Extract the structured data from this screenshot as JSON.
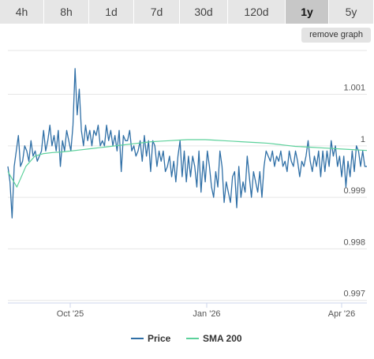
{
  "range_tabs": {
    "items": [
      {
        "label": "4h",
        "active": false
      },
      {
        "label": "8h",
        "active": false
      },
      {
        "label": "1d",
        "active": false
      },
      {
        "label": "7d",
        "active": false
      },
      {
        "label": "30d",
        "active": false
      },
      {
        "label": "120d",
        "active": false
      },
      {
        "label": "1y",
        "active": true
      },
      {
        "label": "5y",
        "active": false
      }
    ]
  },
  "remove_graph_label": "remove graph",
  "chart_data": {
    "type": "line",
    "x_ticks": [
      "Oct '25",
      "Jan '26",
      "Apr '26"
    ],
    "y_ticks": [
      0.997,
      0.998,
      0.999,
      1,
      1.001
    ],
    "y_tick_labels": [
      "0.997",
      "0.998",
      "0.999",
      "1",
      "1.001"
    ],
    "ylim": [
      0.99695,
      1.00185
    ],
    "grid": true,
    "legend_position": "bottom",
    "series": [
      {
        "name": "Price",
        "color": "#2f6fa6",
        "values": [
          0.9996,
          0.9993,
          0.9986,
          0.9996,
          0.9999,
          1.0002,
          0.9996,
          0.9997,
          1.0,
          0.9999,
          0.9997,
          1.0001,
          0.9998,
          0.9999,
          0.9997,
          0.9998,
          0.9999,
          1.0003,
          0.9999,
          1.0001,
          1.0004,
          1.0,
          1.0002,
          0.9999,
          1.0003,
          0.9996,
          1.0001,
          0.9999,
          1.0003,
          1.0001,
          0.9999,
          1.0004,
          1.0015,
          1.0006,
          1.0011,
          1.0003,
          1.0,
          1.0004,
          1.0001,
          1.0003,
          1.0,
          1.0003,
          1.0002,
          1.0004,
          1.0,
          1.0001,
          1.0,
          1.0004,
          1.0001,
          1.0003,
          1.0,
          1.0002,
          0.9999,
          1.0003,
          0.9995,
          1.0002,
          1.0001,
          1.0001,
          1.0003,
          0.9999,
          1.0,
          0.9998,
          0.9999,
          1.0001,
          0.9997,
          1.0002,
          0.9998,
          1.0001,
          0.9995,
          1.0001,
          1.0,
          0.9996,
          0.9999,
          0.9997,
          0.9999,
          0.9995,
          0.9996,
          0.9998,
          0.9994,
          0.9997,
          0.9993,
          0.9998,
          1.0001,
          0.9994,
          0.9999,
          0.9993,
          0.9998,
          0.9994,
          0.9998,
          0.9996,
          0.9992,
          0.9999,
          0.9991,
          0.9997,
          0.9993,
          0.9999,
          0.9996,
          0.9992,
          0.999,
          0.9995,
          0.9992,
          0.9999,
          0.9996,
          0.9989,
          0.9993,
          0.9991,
          0.9989,
          0.9994,
          0.9995,
          0.9988,
          0.9996,
          0.999,
          0.9993,
          0.9991,
          0.9998,
          0.9994,
          0.999,
          0.9995,
          0.9993,
          0.9991,
          0.9995,
          0.999,
          0.9996,
          0.9999,
          0.9998,
          0.9997,
          0.9999,
          0.9996,
          0.9998,
          0.9997,
          0.9999,
          0.9996,
          0.9997,
          0.9995,
          0.9999,
          0.9997,
          0.9996,
          0.9999,
          0.9997,
          0.9994,
          0.9997,
          0.9996,
          0.9998,
          1.0001,
          0.9997,
          0.9995,
          0.9998,
          0.9996,
          0.9999,
          0.9994,
          0.9999,
          0.9995,
          0.9999,
          0.9996,
          1.0001,
          0.9998,
          1.0,
          0.9996,
          0.9998,
          0.9994,
          0.9998,
          0.9992,
          0.9997,
          0.9994,
          0.9999,
          0.9995,
          1.0,
          0.9999,
          0.9996,
          0.9999,
          0.9996,
          0.9996
        ],
        "values_note": "sampled every ~2 days from Sep 2025 to Apr 2026"
      },
      {
        "name": "SMA 200",
        "color": "#5cd19b",
        "values": [
          0.9995,
          0.9992,
          0.9996,
          0.9998,
          0.99985,
          0.99987,
          0.99988,
          0.9999,
          0.99992,
          0.99994,
          0.99996,
          0.99998,
          1.0,
          1.00002,
          1.00004,
          1.00006,
          1.00008,
          1.00009,
          1.0001,
          1.00011,
          1.00012,
          1.00012,
          1.00012,
          1.00011,
          1.0001,
          1.00009,
          1.00008,
          1.00007,
          1.00006,
          1.00005,
          1.00003,
          1.00001,
          0.99999,
          0.99998,
          0.99997,
          0.99996,
          0.99995,
          0.99994,
          0.99993,
          0.99992,
          0.99991
        ]
      }
    ]
  }
}
